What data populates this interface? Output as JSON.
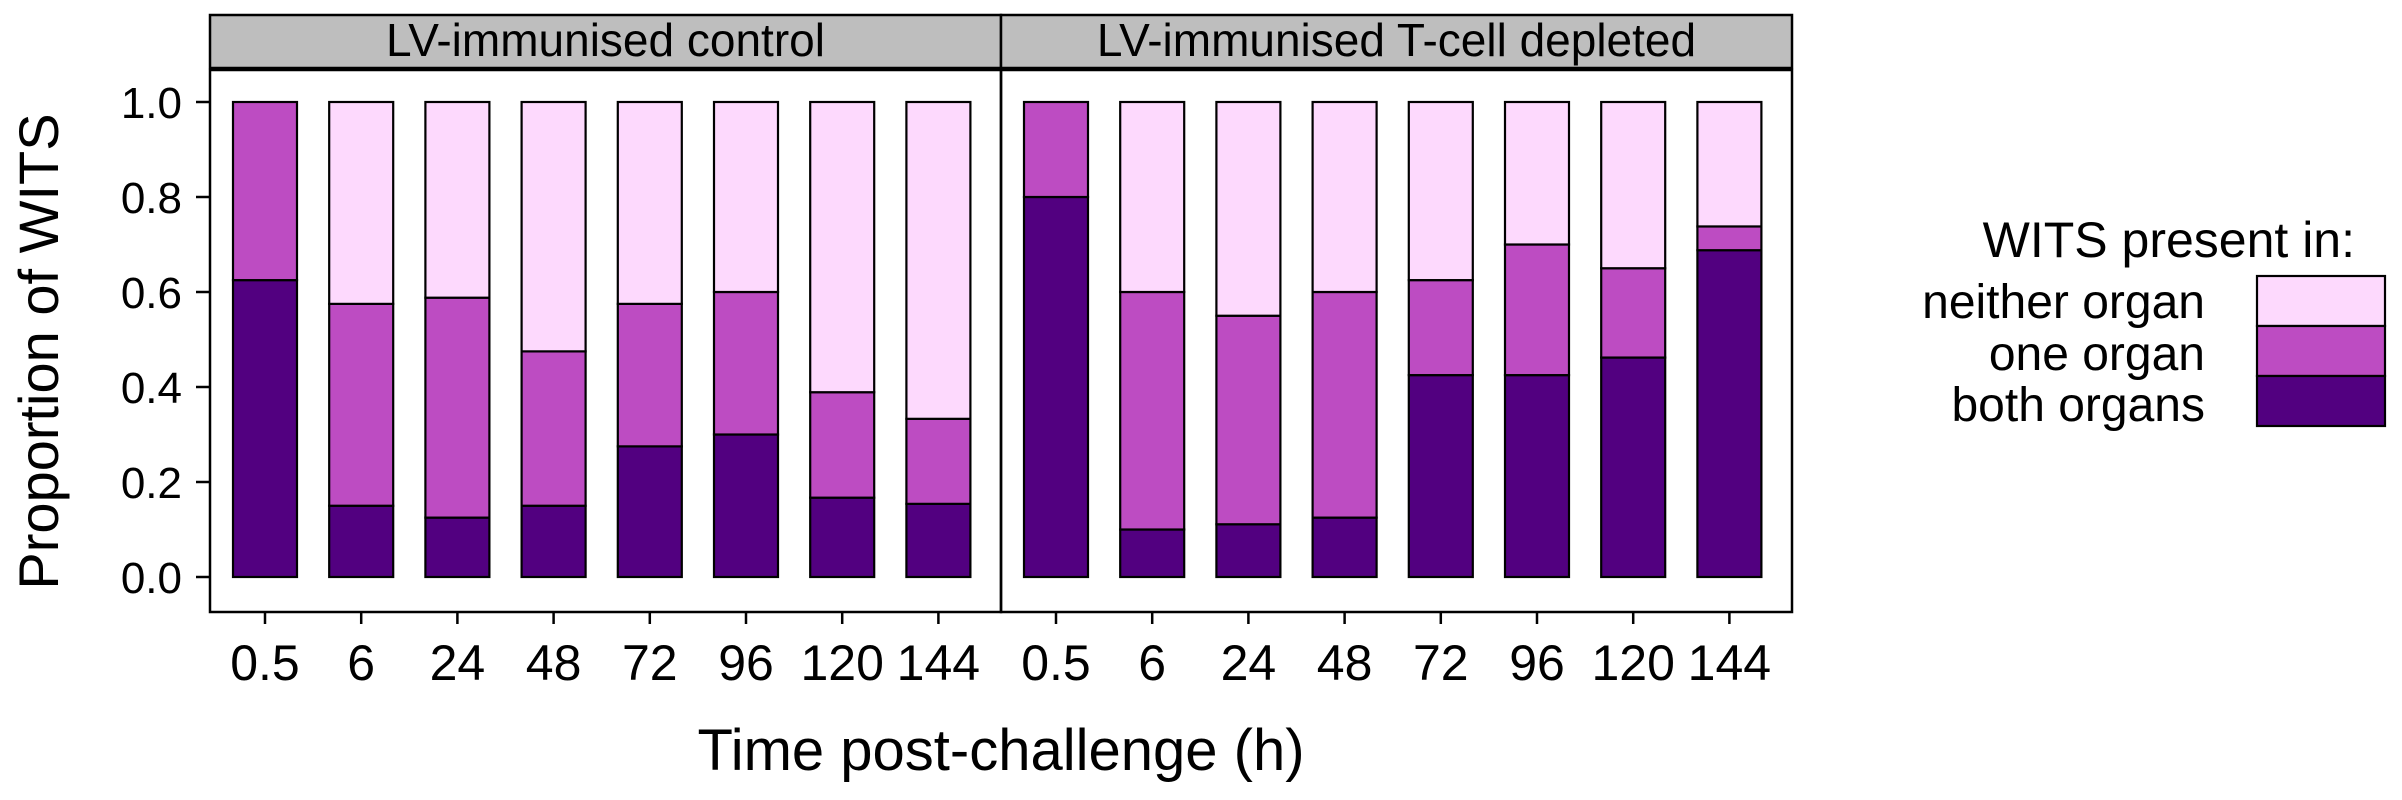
{
  "chart_data": {
    "type": "bar",
    "stacked": true,
    "ylabel": "Proportion of WITS",
    "xlabel": "Time post-challenge (h)",
    "ylim": [
      0,
      1.0
    ],
    "yticks": [
      "0.0",
      "0.2",
      "0.4",
      "0.6",
      "0.8",
      "1.0"
    ],
    "categories": [
      "0.5",
      "6",
      "24",
      "48",
      "72",
      "96",
      "120",
      "144"
    ],
    "legend": {
      "title": "WITS present in:",
      "position": "right",
      "entries": [
        {
          "label": "neither organ",
          "color": "#fdd9fd"
        },
        {
          "label": "one organ",
          "color": "#bd4cc2"
        },
        {
          "label": "both organs",
          "color": "#520080"
        }
      ]
    },
    "panels": [
      {
        "title": "LV-immunised control",
        "series": [
          {
            "name": "both organs",
            "values": [
              0.625,
              0.15,
              0.125,
              0.15,
              0.275,
              0.3,
              0.167,
              0.154
            ]
          },
          {
            "name": "one organ",
            "values": [
              0.375,
              0.425,
              0.463,
              0.325,
              0.3,
              0.3,
              0.222,
              0.179
            ]
          },
          {
            "name": "neither organ",
            "values": [
              0.0,
              0.425,
              0.412,
              0.525,
              0.425,
              0.4,
              0.611,
              0.667
            ]
          }
        ]
      },
      {
        "title": "LV-immunised T-cell depleted",
        "series": [
          {
            "name": "both organs",
            "values": [
              0.8,
              0.1,
              0.111,
              0.125,
              0.425,
              0.425,
              0.462,
              0.688
            ]
          },
          {
            "name": "one organ",
            "values": [
              0.2,
              0.5,
              0.439,
              0.475,
              0.2,
              0.275,
              0.188,
              0.05
            ]
          },
          {
            "name": "neither organ",
            "values": [
              0.0,
              0.4,
              0.45,
              0.4,
              0.375,
              0.3,
              0.35,
              0.262
            ]
          }
        ]
      }
    ]
  }
}
